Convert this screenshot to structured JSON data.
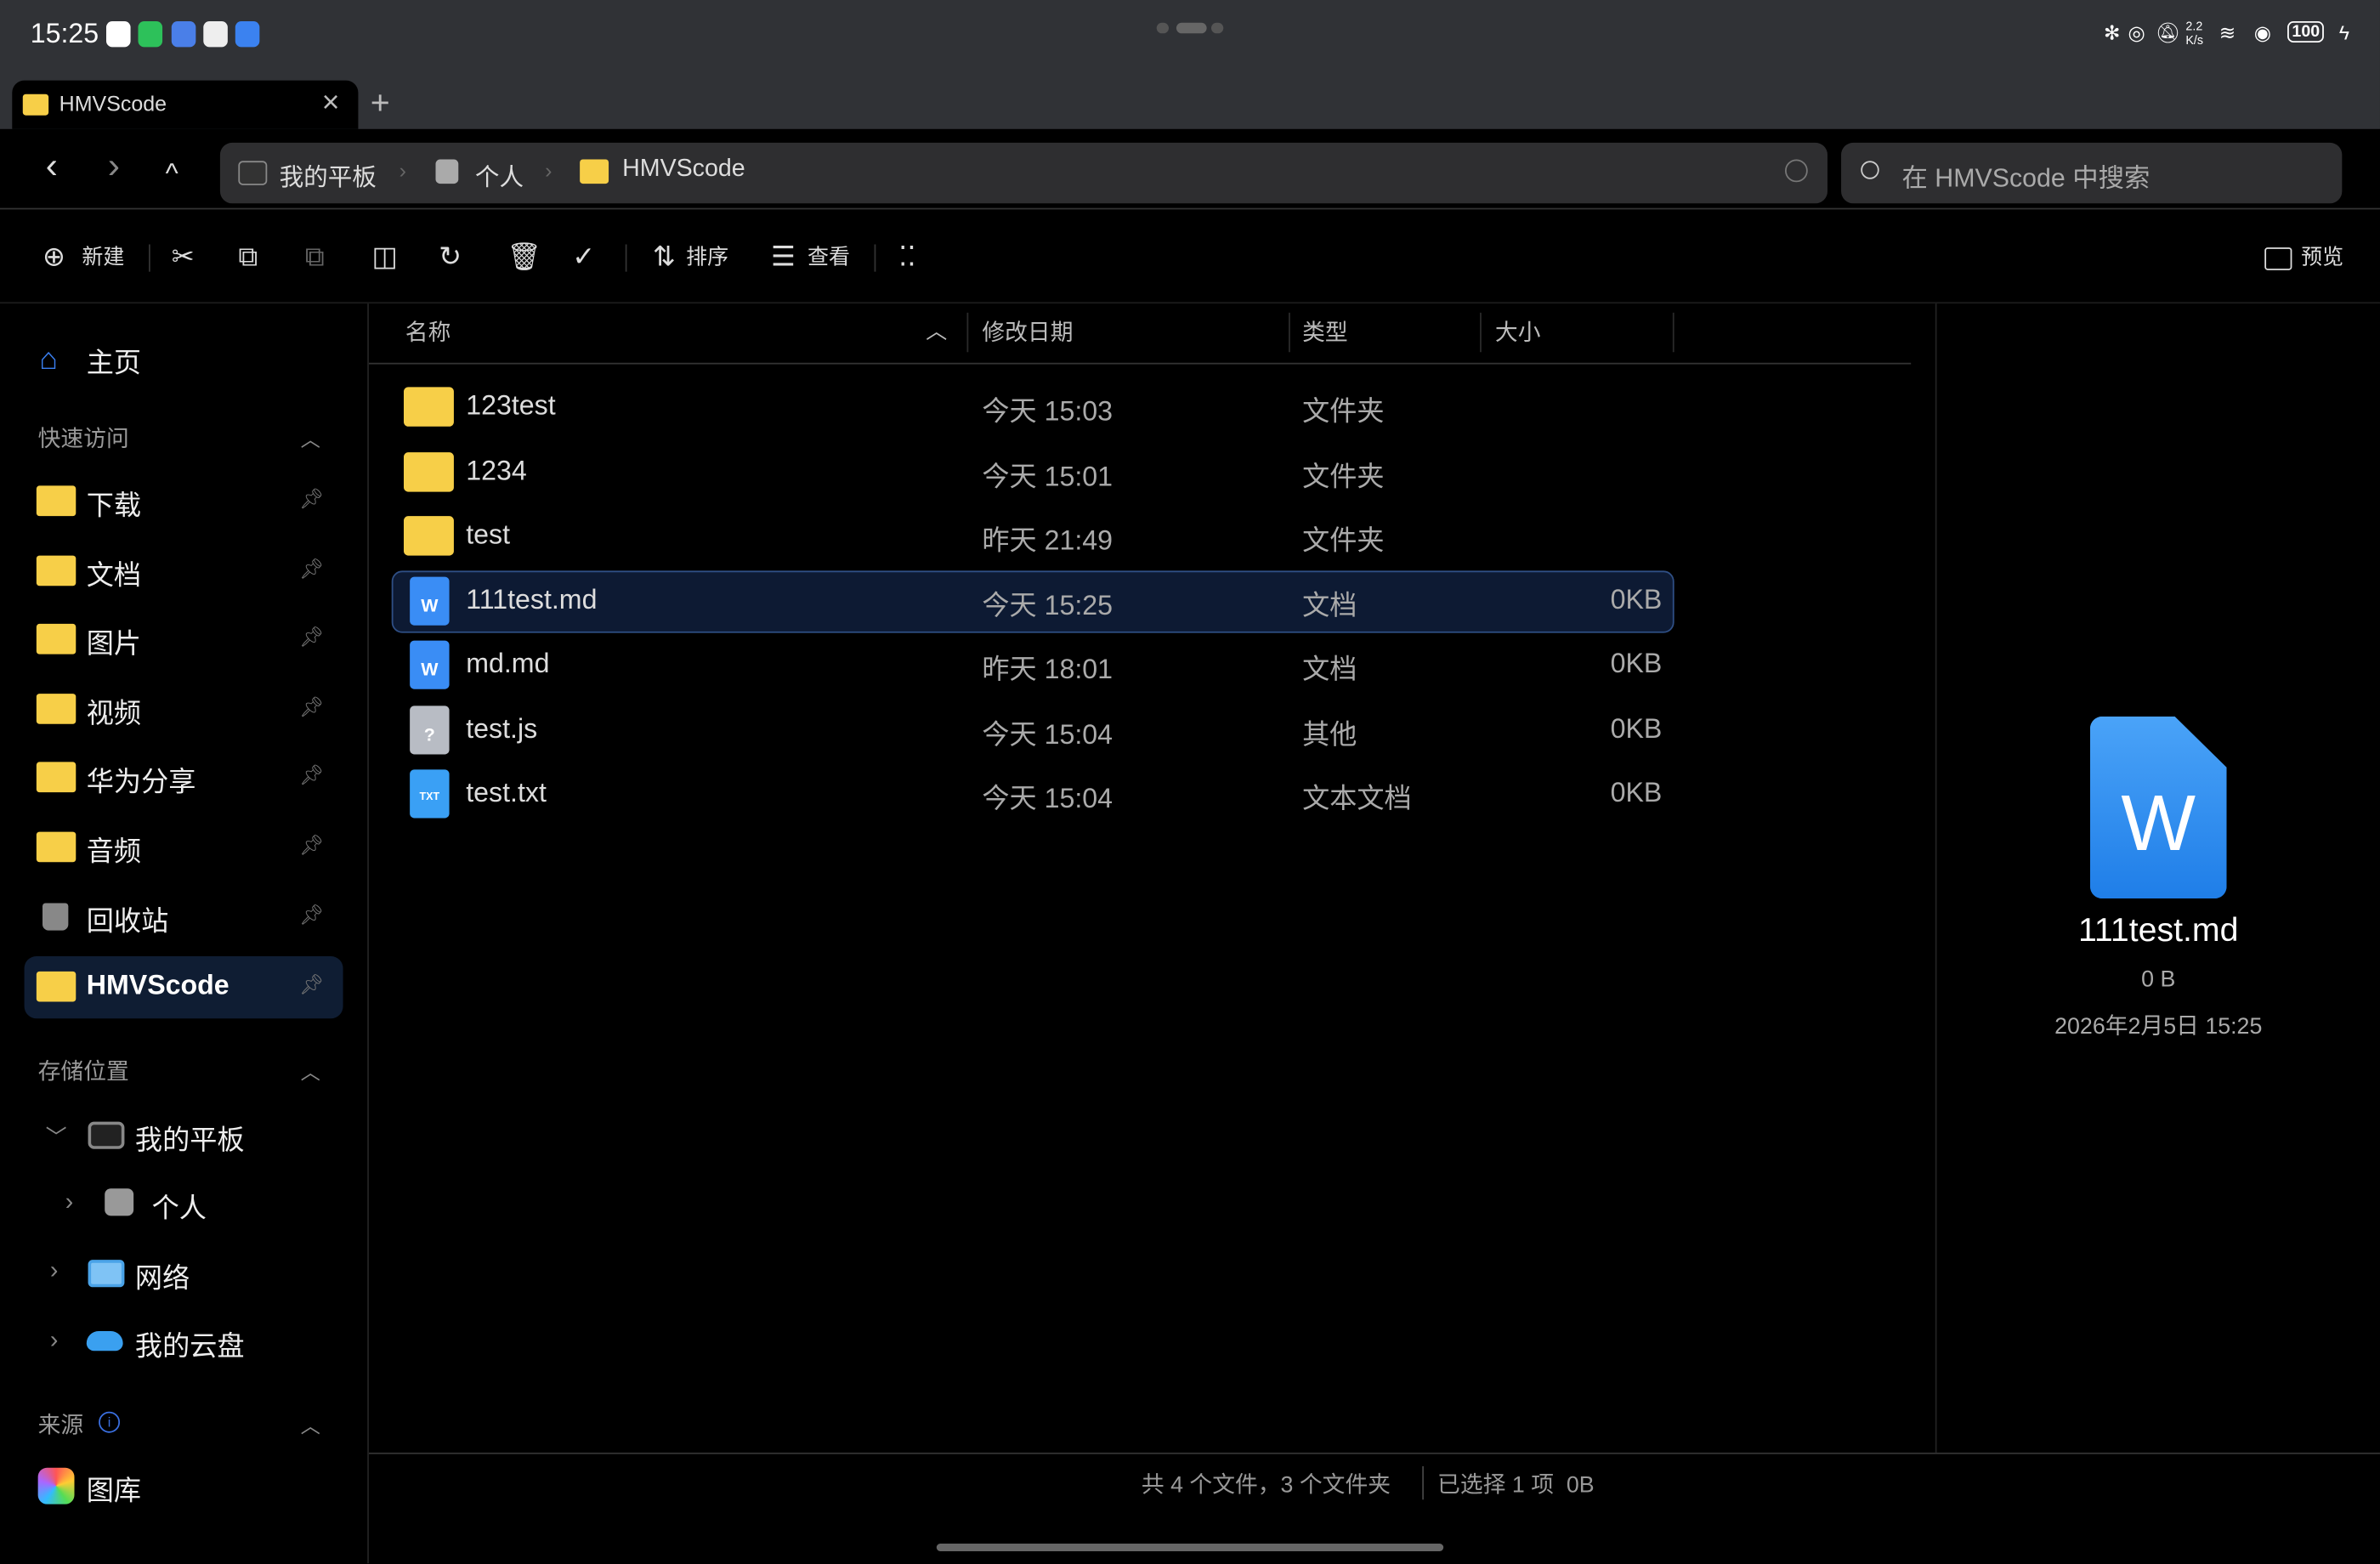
{
  "status_bar": {
    "time": "15:25",
    "net_speed": "2.2 K/s",
    "battery": "100"
  },
  "tab": {
    "title": "HMVScode",
    "close": "×",
    "new_tab": "+"
  },
  "nav": {
    "back": "‹",
    "forward": "›",
    "up": "^"
  },
  "breadcrumb": [
    "我的平板",
    "个人",
    "HMVScode"
  ],
  "search": {
    "placeholder": "在 HMVScode 中搜索"
  },
  "toolbar": {
    "new_label": "新建",
    "sort_label": "排序",
    "view_label": "查看",
    "preview_label": "预览"
  },
  "sidebar": {
    "home": "主页",
    "quick_access": {
      "title": "快速访问",
      "items": [
        "下载",
        "文档",
        "图片",
        "视频",
        "华为分享",
        "音频",
        "回收站",
        "HMVScode"
      ]
    },
    "storage": {
      "title": "存储位置",
      "items": [
        "我的平板",
        "个人",
        "网络",
        "我的云盘"
      ]
    },
    "sources": {
      "title": "来源",
      "items": [
        "图库"
      ]
    }
  },
  "columns": {
    "name": "名称",
    "date": "修改日期",
    "type": "类型",
    "size": "大小"
  },
  "files": [
    {
      "name": "123test",
      "date": "今天 15:03",
      "type": "文件夹",
      "size": "",
      "icon": "folder"
    },
    {
      "name": "1234",
      "date": "今天 15:01",
      "type": "文件夹",
      "size": "",
      "icon": "folder"
    },
    {
      "name": "test",
      "date": "昨天 21:49",
      "type": "文件夹",
      "size": "",
      "icon": "folder"
    },
    {
      "name": "111test.md",
      "date": "今天 15:25",
      "type": "文档",
      "size": "0KB",
      "icon": "word",
      "selected": true
    },
    {
      "name": "md.md",
      "date": "昨天 18:01",
      "type": "文档",
      "size": "0KB",
      "icon": "word"
    },
    {
      "name": "test.js",
      "date": "今天 15:04",
      "type": "其他",
      "size": "0KB",
      "icon": "unknown"
    },
    {
      "name": "test.txt",
      "date": "今天 15:04",
      "type": "文本文档",
      "size": "0KB",
      "icon": "txt"
    }
  ],
  "footer": {
    "summary": "共 4 个文件，3 个文件夹",
    "selection": "已选择 1 项  0B"
  },
  "preview": {
    "icon_letter": "W",
    "name": "111test.md",
    "size": "0 B",
    "date": "2026年2月5日 15:25"
  },
  "colors": {
    "folder": "#f7cf48",
    "word": "#3a8df5",
    "selection_bg": "#0d1a33",
    "selection_border": "#2f4f85"
  }
}
